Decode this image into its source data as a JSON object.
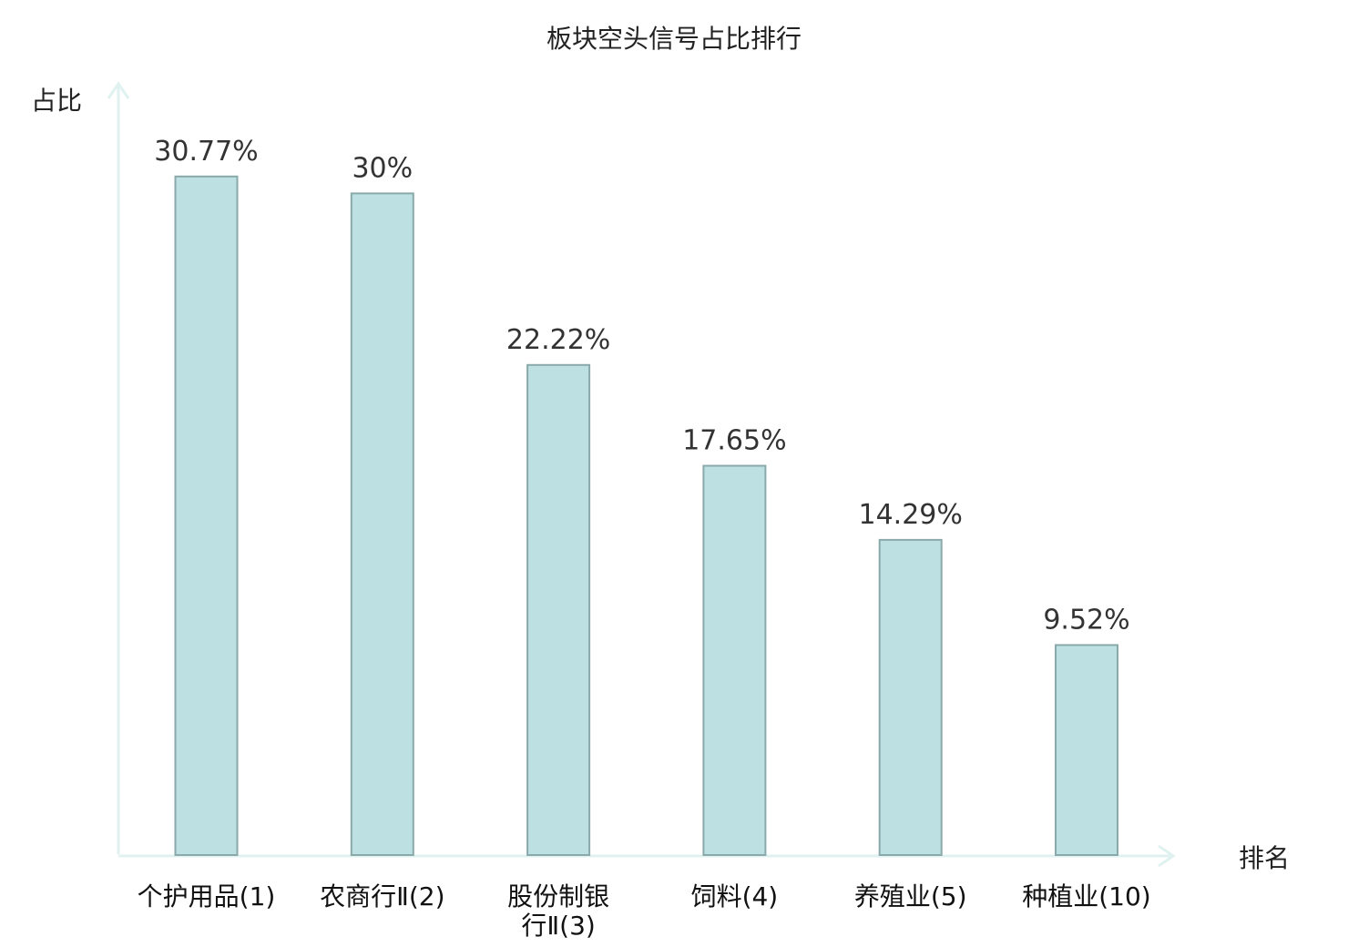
{
  "chart_data": {
    "type": "bar",
    "title": "板块空头信号占比排行",
    "ylabel": "占比",
    "xlabel": "排名",
    "categories": [
      {
        "lines": [
          "个护用品(1)"
        ],
        "highlight": false
      },
      {
        "lines": [
          "农商行Ⅱ(2)"
        ],
        "highlight": false
      },
      {
        "lines": [
          "股份制银",
          "行Ⅱ(3)"
        ],
        "highlight": false
      },
      {
        "lines": [
          "饲料(4)"
        ],
        "highlight": false
      },
      {
        "lines": [
          "养殖业(5)"
        ],
        "highlight": false
      },
      {
        "lines": [
          "种植业(10)"
        ],
        "highlight": true
      }
    ],
    "values": [
      30.77,
      30,
      22.22,
      17.65,
      14.29,
      9.52
    ],
    "value_labels": [
      "30.77%",
      "30%",
      "22.22%",
      "17.65%",
      "14.29%",
      "9.52%"
    ],
    "ylim": [
      0,
      35
    ],
    "grid": false,
    "colors": {
      "bar_fill": "#bde0e2",
      "bar_stroke": "#8aa9aa",
      "axis": "#dff2ef",
      "highlight_text": "#e0201b",
      "tick_text": "#111111"
    }
  }
}
